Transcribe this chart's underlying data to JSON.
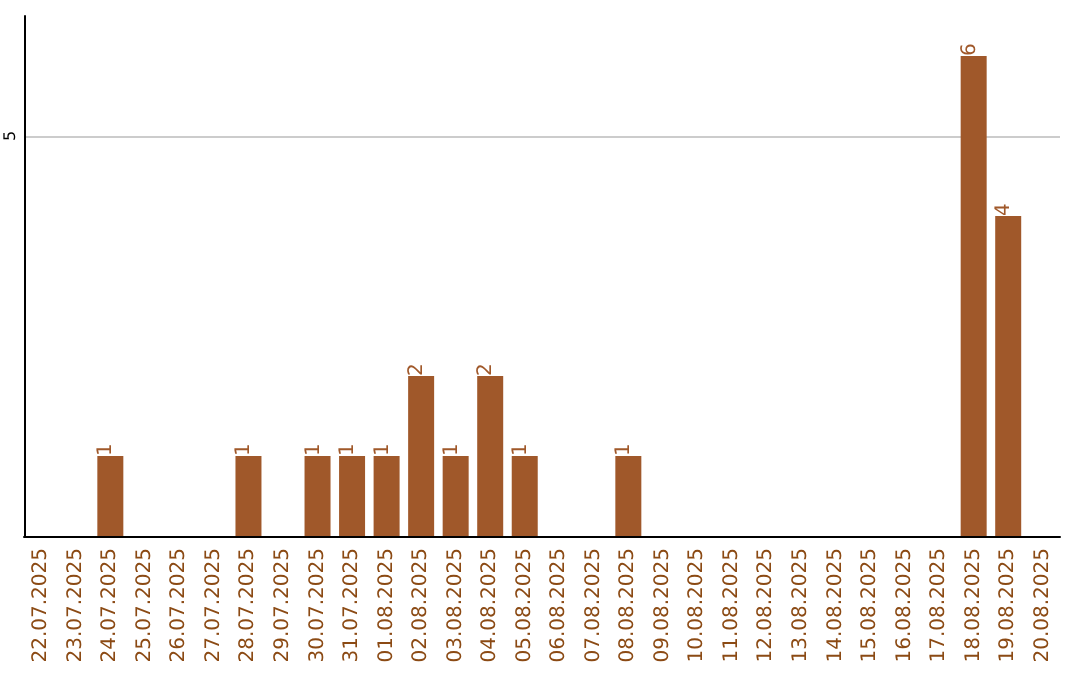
{
  "chart_data": {
    "type": "bar",
    "categories": [
      "22.07.2025",
      "23.07.2025",
      "24.07.2025",
      "25.07.2025",
      "26.07.2025",
      "27.07.2025",
      "28.07.2025",
      "29.07.2025",
      "30.07.2025",
      "31.07.2025",
      "01.08.2025",
      "02.08.2025",
      "03.08.2025",
      "04.08.2025",
      "05.08.2025",
      "06.08.2025",
      "07.08.2025",
      "08.08.2025",
      "09.08.2025",
      "10.08.2025",
      "11.08.2025",
      "12.08.2025",
      "13.08.2025",
      "14.08.2025",
      "15.08.2025",
      "16.08.2025",
      "17.08.2025",
      "18.08.2025",
      "19.08.2025",
      "20.08.2025"
    ],
    "values": [
      null,
      null,
      1,
      null,
      null,
      null,
      1,
      null,
      1,
      1,
      1,
      2,
      1,
      2,
      1,
      null,
      null,
      1,
      null,
      null,
      null,
      null,
      null,
      null,
      null,
      null,
      null,
      6,
      4,
      null
    ],
    "color": "#a0582a",
    "ylim": [
      0,
      6.5
    ],
    "yticks": [
      5
    ],
    "grid": "y",
    "data_labels": true
  }
}
